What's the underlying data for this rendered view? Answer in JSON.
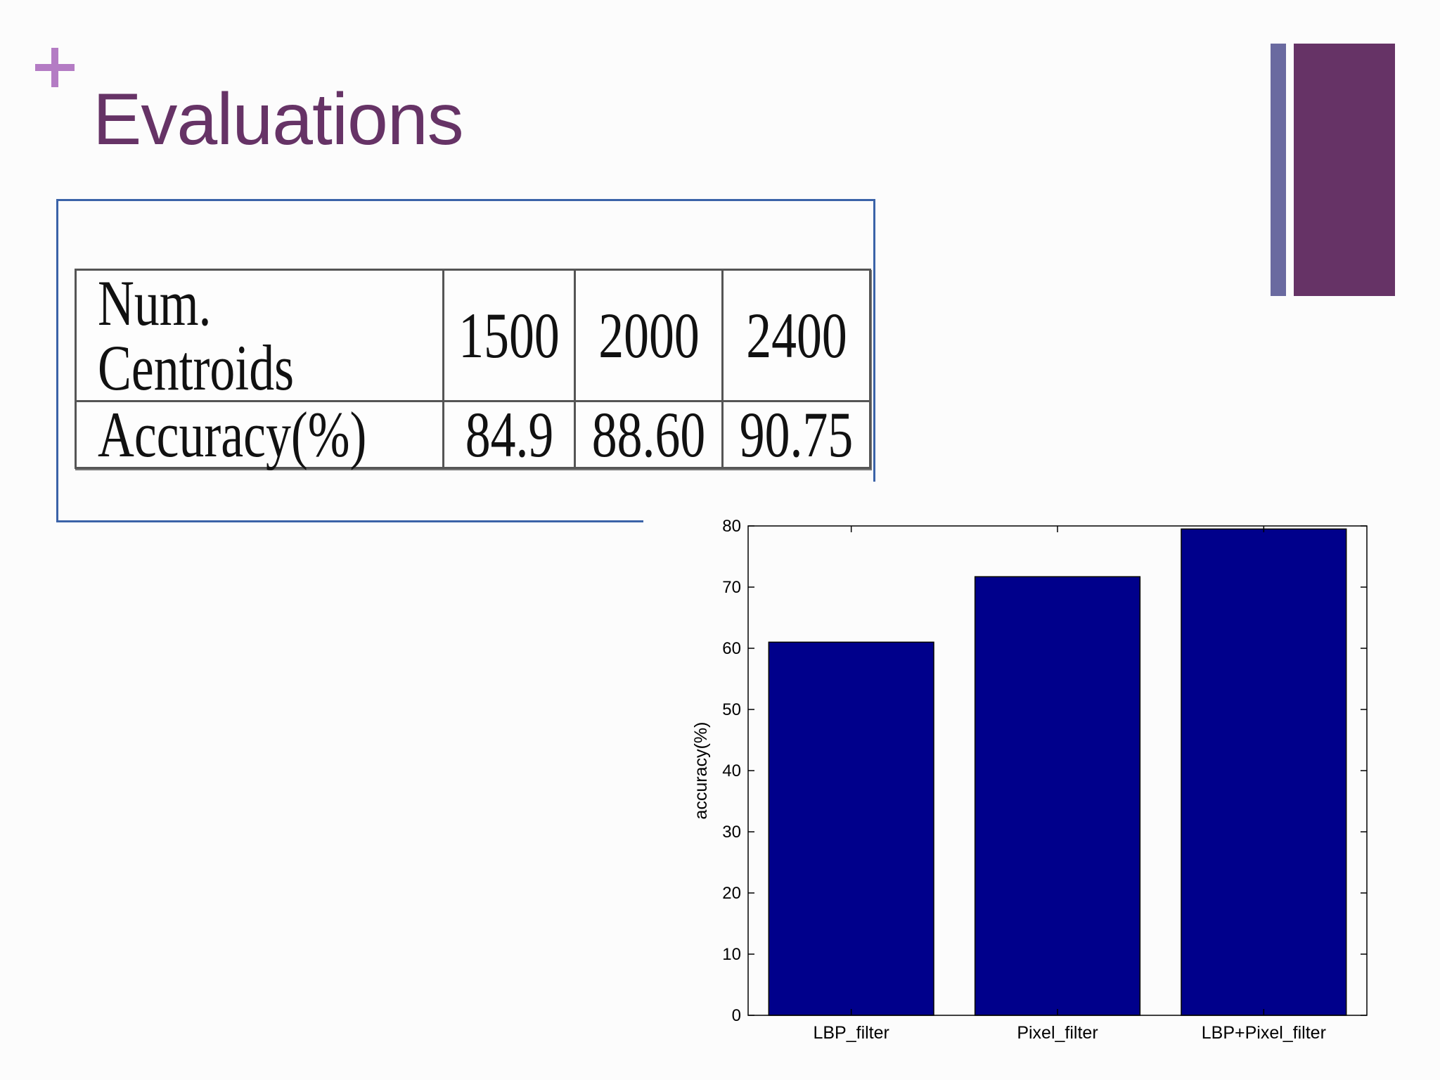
{
  "slide": {
    "title": "Evaluations",
    "colors": {
      "accent_plus": "#b47cc4",
      "title": "#663366",
      "bar_thin": "#6a6aa0",
      "bar_thick": "#663366",
      "frame": "#3b63a8"
    }
  },
  "table": {
    "header": [
      "Num. Centroids",
      "1500",
      "2000",
      "2400"
    ],
    "row": [
      "Accuracy(%)",
      "84.9",
      "88.60",
      "90.75"
    ]
  },
  "chart_data": {
    "type": "bar",
    "categories": [
      "LBP_filter",
      "Pixel_filter",
      "LBP+Pixel_filter"
    ],
    "values": [
      61,
      71.7,
      79.5
    ],
    "title": "",
    "xlabel": "",
    "ylabel": "accuracy(%)",
    "ylim": [
      0,
      80
    ],
    "yticks": [
      0,
      10,
      20,
      30,
      40,
      50,
      60,
      70,
      80
    ],
    "bar_color": "#00008b",
    "grid": false,
    "legend": "none"
  }
}
